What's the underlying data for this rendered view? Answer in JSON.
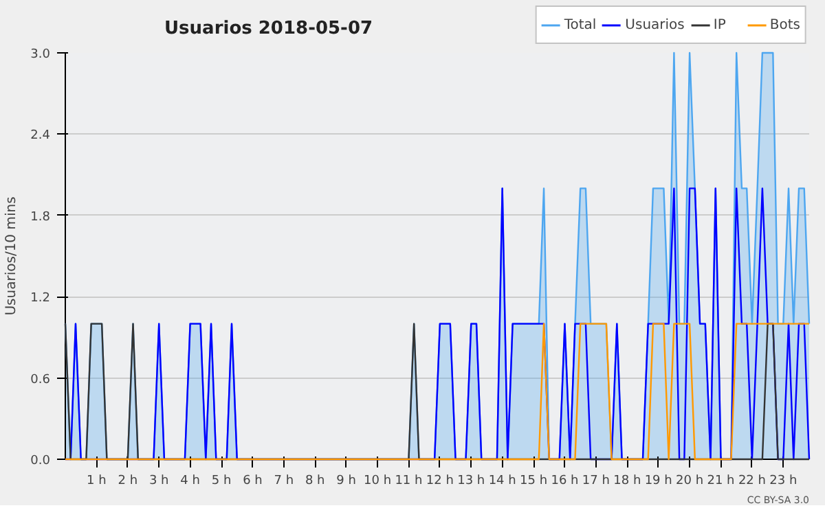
{
  "chart_data": {
    "type": "line",
    "title": "Usuarios  2018-05-07",
    "ylabel": "Usuarios/10 mins",
    "x": [
      0,
      0.17,
      0.33,
      0.5,
      0.67,
      0.83,
      1,
      1.17,
      1.33,
      1.5,
      1.67,
      1.83,
      2,
      2.17,
      2.33,
      2.5,
      2.67,
      2.83,
      3,
      3.17,
      3.33,
      3.5,
      3.67,
      3.83,
      4,
      4.17,
      4.33,
      4.5,
      4.67,
      4.83,
      5,
      5.17,
      5.33,
      5.5,
      5.67,
      5.83,
      6,
      6.17,
      6.33,
      6.5,
      6.67,
      6.83,
      7,
      7.17,
      7.33,
      7.5,
      7.67,
      7.83,
      8,
      8.17,
      8.33,
      8.5,
      8.67,
      8.83,
      9,
      9.17,
      9.33,
      9.5,
      9.67,
      9.83,
      10,
      10.17,
      10.33,
      10.5,
      10.67,
      10.83,
      11,
      11.17,
      11.33,
      11.5,
      11.67,
      11.83,
      12,
      12.17,
      12.33,
      12.5,
      12.67,
      12.83,
      13,
      13.17,
      13.33,
      13.5,
      13.67,
      13.83,
      14,
      14.17,
      14.33,
      14.5,
      14.67,
      14.83,
      15,
      15.17,
      15.33,
      15.5,
      15.67,
      15.83,
      16,
      16.17,
      16.33,
      16.5,
      16.67,
      16.83,
      17,
      17.17,
      17.33,
      17.5,
      17.67,
      17.83,
      18,
      18.17,
      18.33,
      18.5,
      18.67,
      18.83,
      19,
      19.17,
      19.33,
      19.5,
      19.67,
      19.83,
      20,
      20.17,
      20.33,
      20.5,
      20.67,
      20.83,
      21,
      21.17,
      21.33,
      21.5,
      21.67,
      21.83,
      22,
      22.17,
      22.33,
      22.5,
      22.67,
      22.83,
      23,
      23.17,
      23.33,
      23.5,
      23.67,
      23.83
    ],
    "series": [
      {
        "name": "Total",
        "type": "area",
        "color": "#4da6f0",
        "values": [
          1,
          0,
          1,
          0,
          0,
          1,
          1,
          1,
          0,
          0,
          0,
          0,
          0,
          1,
          0,
          0,
          0,
          0,
          1,
          0,
          0,
          0,
          0,
          0,
          1,
          1,
          1,
          0,
          1,
          0,
          0,
          0,
          1,
          0,
          0,
          0,
          0,
          0,
          0,
          0,
          0,
          0,
          0,
          0,
          0,
          0,
          0,
          0,
          0,
          0,
          0,
          0,
          0,
          0,
          0,
          0,
          0,
          0,
          0,
          0,
          0,
          0,
          0,
          0,
          0,
          0,
          0,
          1,
          0,
          0,
          0,
          0,
          1,
          1,
          1,
          0,
          0,
          0,
          1,
          1,
          0,
          0,
          0,
          0,
          2,
          0,
          1,
          1,
          1,
          1,
          1,
          1,
          2,
          0,
          0,
          0,
          1,
          0,
          1,
          2,
          2,
          1,
          1,
          1,
          1,
          0,
          1,
          0,
          0,
          0,
          0,
          0,
          1,
          2,
          2,
          2,
          1,
          3,
          1,
          1,
          3,
          2,
          1,
          1,
          0,
          2,
          0,
          0,
          0,
          3,
          2,
          2,
          1,
          2,
          3,
          3,
          3,
          1,
          1,
          2,
          1,
          2,
          2,
          1
        ]
      },
      {
        "name": "Usuarios",
        "type": "line",
        "color": "#0000ff",
        "values": [
          0,
          0,
          1,
          0,
          0,
          0,
          0,
          0,
          0,
          0,
          0,
          0,
          0,
          0,
          0,
          0,
          0,
          0,
          1,
          0,
          0,
          0,
          0,
          0,
          1,
          1,
          1,
          0,
          1,
          0,
          0,
          0,
          1,
          0,
          0,
          0,
          0,
          0,
          0,
          0,
          0,
          0,
          0,
          0,
          0,
          0,
          0,
          0,
          0,
          0,
          0,
          0,
          0,
          0,
          0,
          0,
          0,
          0,
          0,
          0,
          0,
          0,
          0,
          0,
          0,
          0,
          0,
          0,
          0,
          0,
          0,
          0,
          1,
          1,
          1,
          0,
          0,
          0,
          1,
          1,
          0,
          0,
          0,
          0,
          2,
          0,
          1,
          1,
          1,
          1,
          1,
          1,
          1,
          0,
          0,
          0,
          1,
          0,
          1,
          1,
          1,
          0,
          0,
          0,
          0,
          0,
          1,
          0,
          0,
          0,
          0,
          0,
          1,
          1,
          1,
          1,
          1,
          2,
          0,
          0,
          2,
          2,
          1,
          1,
          0,
          2,
          0,
          0,
          0,
          2,
          1,
          1,
          0,
          1,
          2,
          1,
          1,
          0,
          0,
          1,
          0,
          1,
          1,
          0
        ]
      },
      {
        "name": "IP",
        "type": "line",
        "color": "#333333",
        "values": [
          1,
          0,
          0,
          0,
          0,
          1,
          1,
          1,
          0,
          0,
          0,
          0,
          0,
          1,
          0,
          0,
          0,
          0,
          0,
          0,
          0,
          0,
          0,
          0,
          0,
          0,
          0,
          0,
          0,
          0,
          0,
          0,
          0,
          0,
          0,
          0,
          0,
          0,
          0,
          0,
          0,
          0,
          0,
          0,
          0,
          0,
          0,
          0,
          0,
          0,
          0,
          0,
          0,
          0,
          0,
          0,
          0,
          0,
          0,
          0,
          0,
          0,
          0,
          0,
          0,
          0,
          0,
          1,
          0,
          0,
          0,
          0,
          0,
          0,
          0,
          0,
          0,
          0,
          0,
          0,
          0,
          0,
          0,
          0,
          0,
          0,
          0,
          0,
          0,
          0,
          0,
          0,
          0,
          0,
          0,
          0,
          0,
          0,
          0,
          0,
          0,
          0,
          0,
          0,
          0,
          0,
          0,
          0,
          0,
          0,
          0,
          0,
          0,
          0,
          0,
          0,
          0,
          0,
          0,
          0,
          0,
          0,
          0,
          0,
          0,
          0,
          0,
          0,
          0,
          0,
          0,
          0,
          0,
          0,
          0,
          1,
          1,
          0,
          0,
          0,
          0,
          0,
          0,
          0
        ]
      },
      {
        "name": "Bots",
        "type": "line",
        "color": "#ff9900",
        "values": [
          0,
          0,
          0,
          0,
          0,
          0,
          0,
          0,
          0,
          0,
          0,
          0,
          0,
          0,
          0,
          0,
          0,
          0,
          0,
          0,
          0,
          0,
          0,
          0,
          0,
          0,
          0,
          0,
          0,
          0,
          0,
          0,
          0,
          0,
          0,
          0,
          0,
          0,
          0,
          0,
          0,
          0,
          0,
          0,
          0,
          0,
          0,
          0,
          0,
          0,
          0,
          0,
          0,
          0,
          0,
          0,
          0,
          0,
          0,
          0,
          0,
          0,
          0,
          0,
          0,
          0,
          0,
          0,
          0,
          0,
          0,
          0,
          0,
          0,
          0,
          0,
          0,
          0,
          0,
          0,
          0,
          0,
          0,
          0,
          0,
          0,
          0,
          0,
          0,
          0,
          0,
          0,
          1,
          0,
          0,
          0,
          0,
          0,
          0,
          1,
          1,
          1,
          1,
          1,
          1,
          0,
          0,
          0,
          0,
          0,
          0,
          0,
          0,
          1,
          1,
          1,
          0,
          1,
          1,
          1,
          1,
          0,
          0,
          0,
          0,
          0,
          0,
          0,
          0,
          1,
          1,
          1,
          1,
          1,
          1,
          1,
          1,
          1,
          1,
          1,
          1,
          1,
          1,
          1
        ]
      }
    ],
    "xlim": [
      0,
      23.83
    ],
    "xticks": [
      {
        "value": 1,
        "label": "1 h"
      },
      {
        "value": 2,
        "label": "2 h"
      },
      {
        "value": 3,
        "label": "3 h"
      },
      {
        "value": 4,
        "label": "4 h"
      },
      {
        "value": 5,
        "label": "5 h"
      },
      {
        "value": 6,
        "label": "6 h"
      },
      {
        "value": 7,
        "label": "7 h"
      },
      {
        "value": 8,
        "label": "8 h"
      },
      {
        "value": 9,
        "label": "9 h"
      },
      {
        "value": 10,
        "label": "10 h"
      },
      {
        "value": 11,
        "label": "11 h"
      },
      {
        "value": 12,
        "label": "12 h"
      },
      {
        "value": 13,
        "label": "13 h"
      },
      {
        "value": 14,
        "label": "14 h"
      },
      {
        "value": 15,
        "label": "15 h"
      },
      {
        "value": 16,
        "label": "16 h"
      },
      {
        "value": 17,
        "label": "17 h"
      },
      {
        "value": 18,
        "label": "18 h"
      },
      {
        "value": 19,
        "label": "19 h"
      },
      {
        "value": 20,
        "label": "20 h"
      },
      {
        "value": 21,
        "label": "21 h"
      },
      {
        "value": 22,
        "label": "22 h"
      },
      {
        "value": 23,
        "label": "23 h"
      }
    ],
    "ylim": [
      0,
      3.0
    ],
    "yticks": [
      {
        "value": 0,
        "label": "0.0"
      },
      {
        "value": 0.6,
        "label": "0.6"
      },
      {
        "value": 1.2,
        "label": "1.2"
      },
      {
        "value": 1.8,
        "label": "1.8"
      },
      {
        "value": 2.4,
        "label": "2.4"
      },
      {
        "value": 3.0,
        "label": "3.0"
      }
    ],
    "grid": "y",
    "legend": "top right",
    "annotations": [
      "CC BY-SA 3.0"
    ]
  }
}
